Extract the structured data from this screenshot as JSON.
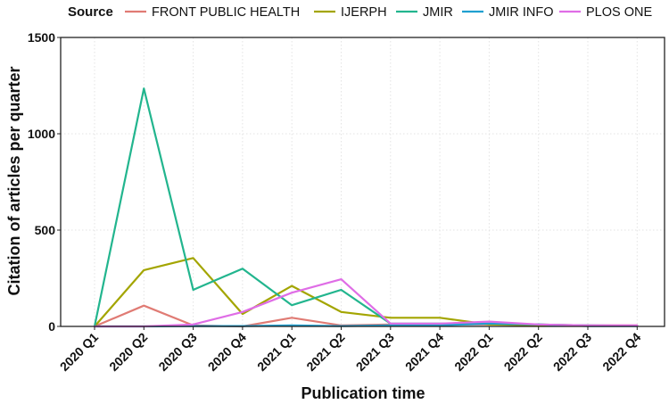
{
  "chart_data": {
    "type": "line",
    "legend_title": "Source",
    "legend_position": "top",
    "xlabel": "Publication time",
    "ylabel": "Citation of articles per quarter",
    "ylim": [
      0,
      1500
    ],
    "yticks": [
      0,
      500,
      1000,
      1500
    ],
    "grid": true,
    "categories": [
      "2020 Q1",
      "2020 Q2",
      "2020 Q3",
      "2020 Q4",
      "2021 Q1",
      "2021 Q2",
      "2021 Q3",
      "2021 Q4",
      "2022 Q1",
      "2022 Q2",
      "2022 Q3",
      "2022 Q4"
    ],
    "series": [
      {
        "name": "FRONT PUBLIC HEALTH",
        "color": "#e07b74",
        "values": [
          0,
          108,
          5,
          0,
          45,
          5,
          10,
          10,
          10,
          10,
          5,
          5
        ]
      },
      {
        "name": "IJERPH",
        "color": "#a3a500",
        "values": [
          0,
          292,
          355,
          65,
          210,
          75,
          45,
          45,
          10,
          5,
          3,
          3
        ]
      },
      {
        "name": "JMIR",
        "color": "#22b58e",
        "values": [
          0,
          1235,
          190,
          300,
          110,
          190,
          15,
          15,
          15,
          10,
          5,
          3
        ]
      },
      {
        "name": "JMIR INFO",
        "color": "#1f9fd0",
        "values": [
          0,
          0,
          2,
          2,
          5,
          2,
          5,
          5,
          15,
          10,
          2,
          2
        ]
      },
      {
        "name": "PLOS ONE",
        "color": "#df6de6",
        "values": [
          0,
          0,
          10,
          75,
          175,
          245,
          15,
          15,
          25,
          10,
          5,
          5
        ]
      }
    ]
  }
}
